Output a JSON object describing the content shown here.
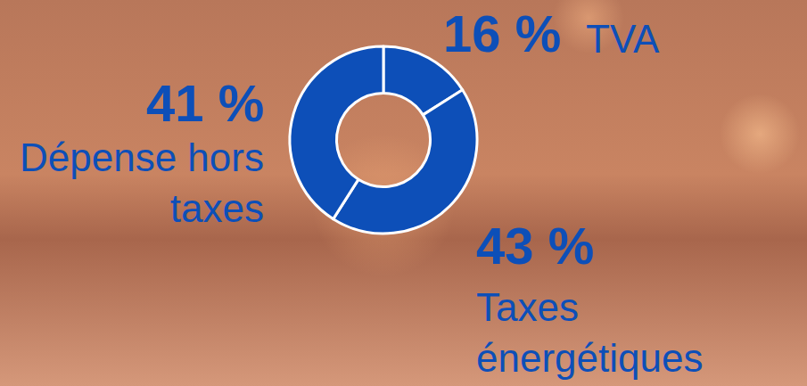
{
  "chart_data": {
    "type": "donut",
    "categories": [
      "TVA",
      "Taxes énergétiques",
      "Dépense hors taxes"
    ],
    "values": [
      16,
      43,
      41
    ],
    "value_labels": [
      "16 %",
      "43 %",
      "41 %"
    ],
    "color": "#0d4fb8",
    "data_labels": true
  }
}
